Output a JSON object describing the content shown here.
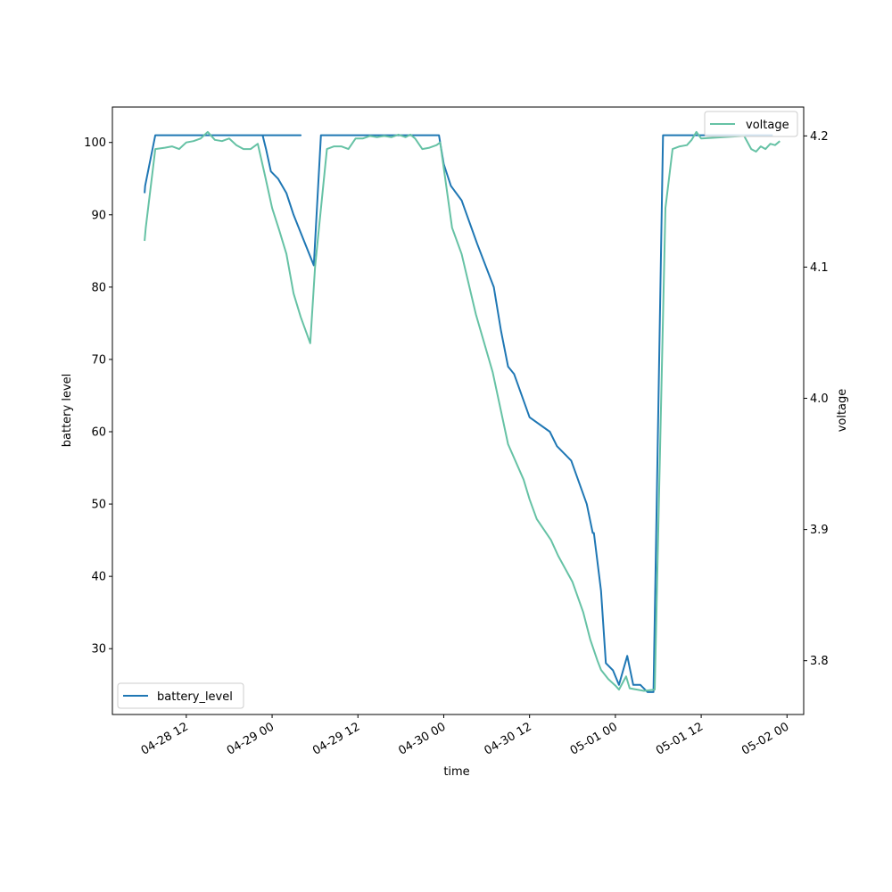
{
  "chart_data": {
    "type": "line",
    "xlabel": "time",
    "ylabel_left": "battery level",
    "ylabel_right": "voltage",
    "x_range": [
      "2024-04-28T01:40",
      "2024-05-02T02:20"
    ],
    "y_left_range": [
      20.9,
      104.9
    ],
    "y_right_range": [
      3.759,
      4.222
    ],
    "x_ticks": [
      {
        "t": "2024-04-28T12:00",
        "label": "04-28 12"
      },
      {
        "t": "2024-04-29T00:00",
        "label": "04-29 00"
      },
      {
        "t": "2024-04-29T12:00",
        "label": "04-29 12"
      },
      {
        "t": "2024-04-30T00:00",
        "label": "04-30 00"
      },
      {
        "t": "2024-04-30T12:00",
        "label": "04-30 12"
      },
      {
        "t": "2024-05-01T00:00",
        "label": "05-01 00"
      },
      {
        "t": "2024-05-01T12:00",
        "label": "05-01 12"
      },
      {
        "t": "2024-05-02T00:00",
        "label": "05-02 00"
      }
    ],
    "y_left_ticks": [
      30,
      40,
      50,
      60,
      70,
      80,
      90,
      100
    ],
    "y_right_ticks": [
      3.8,
      3.9,
      4.0,
      4.1,
      4.2
    ],
    "grid": false,
    "series": [
      {
        "name": "battery_level",
        "axis": "left",
        "color": "#1f77b4",
        "legend_position": "lower-left",
        "points": [
          [
            "2024-04-28T06:10",
            93
          ],
          [
            "2024-04-28T06:15",
            94
          ],
          [
            "2024-04-28T07:40",
            101
          ],
          [
            "2024-04-29T04:00",
            101
          ],
          [
            "2024-04-28T22:40",
            101
          ],
          [
            "2024-04-28T23:10",
            99
          ],
          [
            "2024-04-28T23:50",
            96
          ],
          [
            "2024-04-29T00:50",
            95
          ],
          [
            "2024-04-29T02:00",
            93
          ],
          [
            "2024-04-29T03:00",
            90
          ],
          [
            "2024-04-29T05:50",
            83
          ],
          [
            "2024-04-29T06:50",
            101
          ],
          [
            "2024-04-29T23:20",
            101
          ],
          [
            "2024-04-30T00:00",
            97
          ],
          [
            "2024-04-30T01:00",
            94
          ],
          [
            "2024-04-30T02:30",
            92
          ],
          [
            "2024-04-30T04:40",
            86
          ],
          [
            "2024-04-30T07:00",
            80
          ],
          [
            "2024-04-30T08:00",
            74
          ],
          [
            "2024-04-30T09:00",
            69
          ],
          [
            "2024-04-30T09:50",
            68
          ],
          [
            "2024-04-30T12:00",
            62
          ],
          [
            "2024-04-30T14:50",
            60
          ],
          [
            "2024-04-30T15:50",
            58
          ],
          [
            "2024-04-30T16:50",
            57
          ],
          [
            "2024-04-30T17:50",
            56
          ],
          [
            "2024-04-30T20:00",
            50
          ],
          [
            "2024-04-30T20:50",
            46
          ],
          [
            "2024-04-30T21:00",
            46
          ],
          [
            "2024-04-30T22:00",
            38
          ],
          [
            "2024-04-30T22:40",
            28
          ],
          [
            "2024-04-30T23:40",
            27
          ],
          [
            "2024-05-01T00:30",
            25
          ],
          [
            "2024-05-01T01:40",
            29
          ],
          [
            "2024-05-01T02:30",
            25
          ],
          [
            "2024-05-01T03:30",
            25
          ],
          [
            "2024-05-01T04:30",
            24
          ],
          [
            "2024-05-01T05:20",
            24
          ],
          [
            "2024-05-01T06:40",
            101
          ],
          [
            "2024-05-01T22:00",
            101
          ]
        ]
      },
      {
        "name": "voltage",
        "axis": "right",
        "color": "#66c2a5",
        "legend_position": "upper-right",
        "points": [
          [
            "2024-04-28T06:10",
            4.12
          ],
          [
            "2024-04-28T06:20",
            4.13
          ],
          [
            "2024-04-28T07:40",
            4.19
          ],
          [
            "2024-04-28T09:00",
            4.191
          ],
          [
            "2024-04-28T10:00",
            4.192
          ],
          [
            "2024-04-28T11:00",
            4.19
          ],
          [
            "2024-04-28T12:00",
            4.195
          ],
          [
            "2024-04-28T13:00",
            4.196
          ],
          [
            "2024-04-28T14:00",
            4.198
          ],
          [
            "2024-04-28T15:00",
            4.203
          ],
          [
            "2024-04-28T16:00",
            4.197
          ],
          [
            "2024-04-28T17:00",
            4.196
          ],
          [
            "2024-04-28T18:00",
            4.198
          ],
          [
            "2024-04-28T19:00",
            4.193
          ],
          [
            "2024-04-28T20:00",
            4.19
          ],
          [
            "2024-04-28T21:00",
            4.19
          ],
          [
            "2024-04-28T22:00",
            4.194
          ],
          [
            "2024-04-28T23:00",
            4.17
          ],
          [
            "2024-04-29T00:00",
            4.145
          ],
          [
            "2024-04-29T01:00",
            4.128
          ],
          [
            "2024-04-29T02:00",
            4.11
          ],
          [
            "2024-04-29T03:00",
            4.08
          ],
          [
            "2024-04-29T04:00",
            4.062
          ],
          [
            "2024-04-29T05:20",
            4.042
          ],
          [
            "2024-04-29T06:00",
            4.1
          ],
          [
            "2024-04-29T07:40",
            4.19
          ],
          [
            "2024-04-29T08:40",
            4.192
          ],
          [
            "2024-04-29T09:40",
            4.192
          ],
          [
            "2024-04-29T10:40",
            4.19
          ],
          [
            "2024-04-29T11:40",
            4.198
          ],
          [
            "2024-04-29T12:40",
            4.198
          ],
          [
            "2024-04-29T13:40",
            4.2
          ],
          [
            "2024-04-29T14:40",
            4.199
          ],
          [
            "2024-04-29T15:40",
            4.2
          ],
          [
            "2024-04-29T16:40",
            4.199
          ],
          [
            "2024-04-29T17:40",
            4.201
          ],
          [
            "2024-04-29T18:40",
            4.199
          ],
          [
            "2024-04-29T19:20",
            4.201
          ],
          [
            "2024-04-29T20:00",
            4.198
          ],
          [
            "2024-04-29T21:00",
            4.19
          ],
          [
            "2024-04-29T22:00",
            4.191
          ],
          [
            "2024-04-29T23:00",
            4.193
          ],
          [
            "2024-04-29T23:30",
            4.195
          ],
          [
            "2024-04-30T01:10",
            4.13
          ],
          [
            "2024-04-30T02:30",
            4.11
          ],
          [
            "2024-04-30T04:30",
            4.064
          ],
          [
            "2024-04-30T06:50",
            4.02
          ],
          [
            "2024-04-30T09:00",
            3.965
          ],
          [
            "2024-04-30T11:10",
            3.938
          ],
          [
            "2024-04-30T12:00",
            3.923
          ],
          [
            "2024-04-30T13:00",
            3.908
          ],
          [
            "2024-04-30T15:00",
            3.892
          ],
          [
            "2024-04-30T16:00",
            3.88
          ],
          [
            "2024-04-30T18:00",
            3.86
          ],
          [
            "2024-04-30T19:30",
            3.837
          ],
          [
            "2024-04-30T20:30",
            3.816
          ],
          [
            "2024-04-30T21:30",
            3.8
          ],
          [
            "2024-04-30T22:00",
            3.793
          ],
          [
            "2024-04-30T23:00",
            3.786
          ],
          [
            "2024-05-01T00:00",
            3.781
          ],
          [
            "2024-05-01T00:30",
            3.778
          ],
          [
            "2024-05-01T01:30",
            3.788
          ],
          [
            "2024-05-01T02:00",
            3.779
          ],
          [
            "2024-05-01T04:00",
            3.777
          ],
          [
            "2024-05-01T05:30",
            3.778
          ],
          [
            "2024-05-01T07:00",
            4.145
          ],
          [
            "2024-05-01T08:00",
            4.19
          ],
          [
            "2024-05-01T09:00",
            4.192
          ],
          [
            "2024-05-01T10:00",
            4.193
          ],
          [
            "2024-05-01T10:40",
            4.197
          ],
          [
            "2024-05-01T11:20",
            4.203
          ],
          [
            "2024-05-01T12:00",
            4.198
          ],
          [
            "2024-05-01T18:00",
            4.2
          ],
          [
            "2024-05-01T19:00",
            4.19
          ],
          [
            "2024-05-01T19:40",
            4.188
          ],
          [
            "2024-05-01T20:20",
            4.192
          ],
          [
            "2024-05-01T21:00",
            4.19
          ],
          [
            "2024-05-01T21:40",
            4.194
          ],
          [
            "2024-05-01T22:20",
            4.193
          ],
          [
            "2024-05-01T23:00",
            4.196
          ]
        ]
      }
    ]
  }
}
